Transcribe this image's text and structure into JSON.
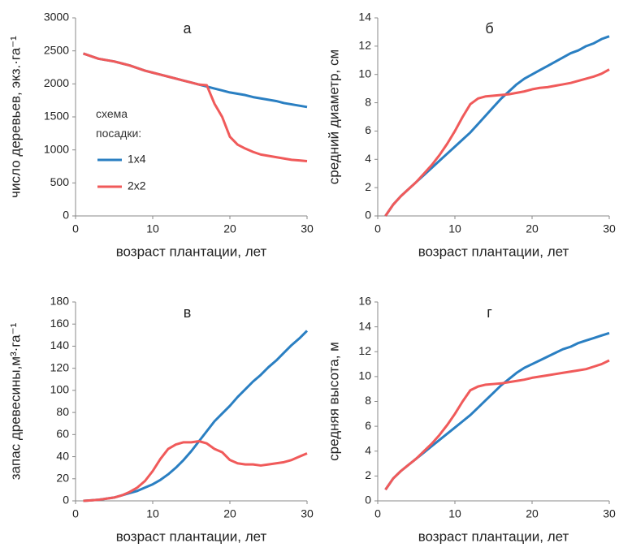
{
  "chart_data": [
    {
      "type": "line",
      "annotation": "а",
      "xlabel": "возраст плантации, лет",
      "ylabel": "число деревьев, экз.·га⁻¹",
      "x": [
        1,
        2,
        3,
        4,
        5,
        6,
        7,
        8,
        9,
        10,
        11,
        12,
        13,
        14,
        15,
        16,
        17,
        18,
        19,
        20,
        21,
        22,
        23,
        24,
        25,
        26,
        27,
        28,
        29,
        30
      ],
      "legend_title": "схема посадки:",
      "series": [
        {
          "name": "1x4",
          "color": "#2a7fc2",
          "values": [
            2460,
            2420,
            2380,
            2360,
            2340,
            2310,
            2280,
            2240,
            2200,
            2170,
            2140,
            2110,
            2080,
            2050,
            2020,
            1990,
            1960,
            1930,
            1900,
            1870,
            1850,
            1830,
            1800,
            1780,
            1760,
            1740,
            1710,
            1690,
            1670,
            1650
          ]
        },
        {
          "name": "2x2",
          "color": "#f05a5a",
          "values": [
            2460,
            2420,
            2380,
            2360,
            2340,
            2310,
            2280,
            2240,
            2200,
            2170,
            2140,
            2110,
            2080,
            2050,
            2020,
            1990,
            1980,
            1700,
            1500,
            1200,
            1080,
            1020,
            970,
            930,
            910,
            890,
            870,
            850,
            840,
            830
          ]
        }
      ],
      "xlim": [
        0,
        30
      ],
      "ylim": [
        0,
        3000
      ],
      "xticks": [
        0,
        10,
        20,
        30
      ],
      "yticks": [
        0,
        500,
        1000,
        1500,
        2000,
        2500,
        3000
      ]
    },
    {
      "type": "line",
      "annotation": "б",
      "xlabel": "возраст плантации, лет",
      "ylabel": "средний диаметр, см",
      "x": [
        1,
        2,
        3,
        4,
        5,
        6,
        7,
        8,
        9,
        10,
        11,
        12,
        13,
        14,
        15,
        16,
        17,
        18,
        19,
        20,
        21,
        22,
        23,
        24,
        25,
        26,
        27,
        28,
        29,
        30
      ],
      "series": [
        {
          "color": "#2a7fc2",
          "values": [
            0,
            0.8,
            1.4,
            1.9,
            2.4,
            2.9,
            3.4,
            3.9,
            4.4,
            4.9,
            5.4,
            5.9,
            6.5,
            7.1,
            7.7,
            8.3,
            8.8,
            9.3,
            9.7,
            10.0,
            10.3,
            10.6,
            10.9,
            11.2,
            11.5,
            11.7,
            12.0,
            12.2,
            12.5,
            12.7
          ]
        },
        {
          "color": "#f05a5a",
          "values": [
            0,
            0.8,
            1.4,
            1.9,
            2.4,
            3.0,
            3.6,
            4.3,
            5.1,
            6.0,
            7.0,
            7.9,
            8.3,
            8.45,
            8.5,
            8.55,
            8.6,
            8.7,
            8.8,
            8.95,
            9.05,
            9.1,
            9.2,
            9.3,
            9.4,
            9.55,
            9.7,
            9.85,
            10.05,
            10.35
          ]
        }
      ],
      "xlim": [
        0,
        30
      ],
      "ylim": [
        0,
        14
      ],
      "xticks": [
        0,
        10,
        20,
        30
      ],
      "yticks": [
        0,
        2,
        4,
        6,
        8,
        10,
        12,
        14
      ]
    },
    {
      "type": "line",
      "annotation": "в",
      "xlabel": "возраст плантации, лет",
      "ylabel": "запас древесины,м³·га⁻¹",
      "x": [
        1,
        2,
        3,
        4,
        5,
        6,
        7,
        8,
        9,
        10,
        11,
        12,
        13,
        14,
        15,
        16,
        17,
        18,
        19,
        20,
        21,
        22,
        23,
        24,
        25,
        26,
        27,
        28,
        29,
        30
      ],
      "series": [
        {
          "color": "#2a7fc2",
          "values": [
            0,
            0.5,
            1,
            2,
            3,
            5,
            7,
            9,
            12,
            15,
            19,
            24,
            30,
            37,
            45,
            54,
            63,
            72,
            79,
            86,
            94,
            101,
            108,
            114,
            121,
            127,
            134,
            141,
            147,
            154
          ]
        },
        {
          "color": "#f05a5a",
          "values": [
            0,
            0.5,
            1,
            2,
            3,
            5,
            8,
            12,
            18,
            27,
            38,
            47,
            51,
            53,
            53,
            54,
            52,
            47,
            44,
            37,
            34,
            33,
            33,
            32,
            33,
            34,
            35,
            37,
            40,
            43
          ]
        }
      ],
      "xlim": [
        0,
        30
      ],
      "ylim": [
        0,
        180
      ],
      "xticks": [
        0,
        10,
        20,
        30
      ],
      "yticks": [
        0,
        20,
        40,
        60,
        80,
        100,
        120,
        140,
        160,
        180
      ]
    },
    {
      "type": "line",
      "annotation": "г",
      "xlabel": "возраст плантации, лет",
      "ylabel": "средняя высота, м",
      "x": [
        1,
        2,
        3,
        4,
        5,
        6,
        7,
        8,
        9,
        10,
        11,
        12,
        13,
        14,
        15,
        16,
        17,
        18,
        19,
        20,
        21,
        22,
        23,
        24,
        25,
        26,
        27,
        28,
        29,
        30
      ],
      "series": [
        {
          "color": "#2a7fc2",
          "values": [
            0.9,
            1.8,
            2.4,
            2.9,
            3.4,
            3.9,
            4.4,
            4.9,
            5.4,
            5.9,
            6.4,
            6.9,
            7.5,
            8.1,
            8.7,
            9.3,
            9.8,
            10.3,
            10.7,
            11.0,
            11.3,
            11.6,
            11.9,
            12.2,
            12.4,
            12.7,
            12.9,
            13.1,
            13.3,
            13.5
          ]
        },
        {
          "color": "#f05a5a",
          "values": [
            0.9,
            1.8,
            2.4,
            2.9,
            3.4,
            4.0,
            4.6,
            5.3,
            6.1,
            7.0,
            8.0,
            8.9,
            9.2,
            9.35,
            9.4,
            9.45,
            9.55,
            9.65,
            9.75,
            9.9,
            10.0,
            10.1,
            10.2,
            10.3,
            10.4,
            10.5,
            10.6,
            10.8,
            11.0,
            11.3
          ]
        }
      ],
      "xlim": [
        0,
        30
      ],
      "ylim": [
        0,
        16
      ],
      "xticks": [
        0,
        10,
        20,
        30
      ],
      "yticks": [
        0,
        2,
        4,
        6,
        8,
        10,
        12,
        14,
        16
      ]
    }
  ]
}
